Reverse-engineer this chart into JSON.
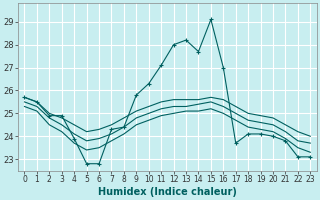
{
  "xlabel": "Humidex (Indice chaleur)",
  "background_color": "#c8eef0",
  "grid_color": "#ffffff",
  "line_color": "#006060",
  "xlim": [
    -0.5,
    23.5
  ],
  "ylim": [
    22.5,
    29.8
  ],
  "yticks": [
    23,
    24,
    25,
    26,
    27,
    28,
    29
  ],
  "xticks": [
    0,
    1,
    2,
    3,
    4,
    5,
    6,
    7,
    8,
    9,
    10,
    11,
    12,
    13,
    14,
    15,
    16,
    17,
    18,
    19,
    20,
    21,
    22,
    23
  ],
  "lines": [
    {
      "x": [
        0,
        1,
        2,
        3,
        4,
        5,
        6,
        7,
        8,
        9,
        10,
        11,
        12,
        13,
        14,
        15,
        16,
        17,
        18,
        19,
        20,
        21,
        22,
        23
      ],
      "y": [
        25.7,
        25.5,
        24.9,
        24.9,
        23.9,
        22.8,
        22.8,
        24.3,
        24.4,
        25.8,
        26.3,
        27.1,
        28.0,
        28.2,
        27.7,
        29.1,
        27.0,
        23.7,
        24.1,
        24.1,
        24.0,
        23.8,
        23.1,
        23.1
      ],
      "marker": "+"
    },
    {
      "x": [
        0,
        1,
        2,
        3,
        4,
        5,
        6,
        7,
        8,
        9,
        10,
        11,
        12,
        13,
        14,
        15,
        16,
        17,
        18,
        19,
        20,
        21,
        22,
        23
      ],
      "y": [
        25.7,
        25.5,
        25.0,
        24.8,
        24.5,
        24.2,
        24.3,
        24.5,
        24.8,
        25.1,
        25.3,
        25.5,
        25.6,
        25.6,
        25.6,
        25.7,
        25.6,
        25.3,
        25.0,
        24.9,
        24.8,
        24.5,
        24.2,
        24.0
      ],
      "marker": null
    },
    {
      "x": [
        0,
        1,
        2,
        3,
        4,
        5,
        6,
        7,
        8,
        9,
        10,
        11,
        12,
        13,
        14,
        15,
        16,
        17,
        18,
        19,
        20,
        21,
        22,
        23
      ],
      "y": [
        25.5,
        25.3,
        24.8,
        24.5,
        24.1,
        23.8,
        23.9,
        24.1,
        24.4,
        24.8,
        25.0,
        25.2,
        25.3,
        25.3,
        25.4,
        25.5,
        25.3,
        25.0,
        24.7,
        24.6,
        24.5,
        24.2,
        23.8,
        23.7
      ],
      "marker": null
    },
    {
      "x": [
        0,
        1,
        2,
        3,
        4,
        5,
        6,
        7,
        8,
        9,
        10,
        11,
        12,
        13,
        14,
        15,
        16,
        17,
        18,
        19,
        20,
        21,
        22,
        23
      ],
      "y": [
        25.3,
        25.1,
        24.5,
        24.2,
        23.7,
        23.4,
        23.5,
        23.8,
        24.1,
        24.5,
        24.7,
        24.9,
        25.0,
        25.1,
        25.1,
        25.2,
        25.0,
        24.7,
        24.4,
        24.3,
        24.2,
        23.9,
        23.5,
        23.3
      ],
      "marker": null
    }
  ]
}
